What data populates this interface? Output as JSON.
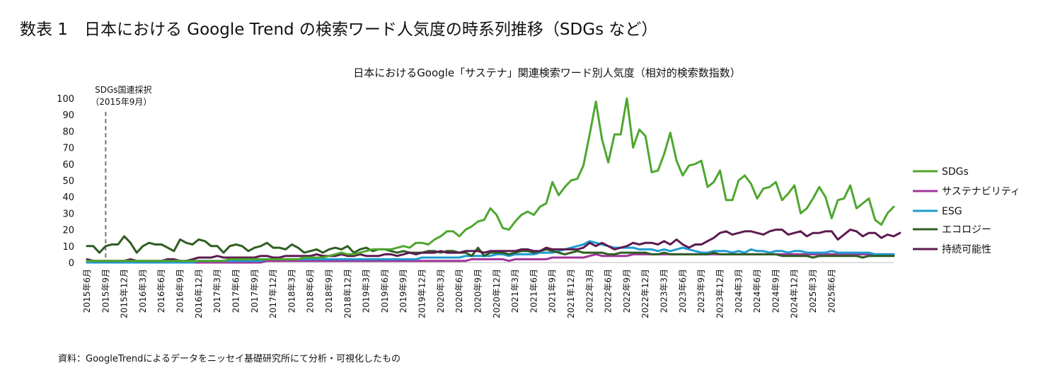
{
  "figure_title": "数表 1　日本における Google Trend の検索ワード人気度の時系列推移（SDGs など）",
  "source_note": "資料：GoogleTrendによるデータをニッセイ基礎研究所にて分析・可視化したもの",
  "chart_data": {
    "type": "line",
    "title": "日本におけるGoogle「サステナ」関連検索ワード別人気度（相対的検索数指数）",
    "xlabel": "",
    "ylabel": "",
    "ylim": [
      0,
      100
    ],
    "yticks": [
      0,
      10,
      20,
      30,
      40,
      50,
      60,
      70,
      80,
      90,
      100
    ],
    "grid": false,
    "legend_position": "right",
    "x_start": "2015-06",
    "x_tick_labels": [
      "2015年6月",
      "2015年9月",
      "2015年12月",
      "2016年3月",
      "2016年6月",
      "2016年9月",
      "2016年12月",
      "2017年3月",
      "2017年6月",
      "2017年9月",
      "2017年12月",
      "2018年3月",
      "2018年6月",
      "2018年9月",
      "2018年12月",
      "2019年3月",
      "2019年6月",
      "2019年9月",
      "2019年12月",
      "2020年3月",
      "2020年6月",
      "2020年9月",
      "2020年12月",
      "2021年3月",
      "2021年6月",
      "2021年9月",
      "2021年12月",
      "2022年3月",
      "2022年6月",
      "2022年9月",
      "2022年12月",
      "2023年3月",
      "2023年6月",
      "2023年9月",
      "2023年12月",
      "2024年3月",
      "2024年6月",
      "2024年9月",
      "2024年12月",
      "2025年3月",
      "2025年6月"
    ],
    "annotation": {
      "label": "SDGs国連採択",
      "sub": "（2015年9月）",
      "at": "2015-09"
    },
    "series": [
      {
        "name": "SDGs",
        "color": "#4ea72e",
        "values": [
          1,
          1,
          1,
          1,
          1,
          1,
          1,
          1,
          1,
          1,
          1,
          1,
          1,
          1,
          1,
          1,
          1,
          1,
          1,
          1,
          1,
          1,
          1,
          2,
          2,
          2,
          2,
          2,
          2,
          2,
          2,
          2,
          2,
          2,
          2,
          3,
          3,
          3,
          3,
          4,
          5,
          6,
          5,
          5,
          6,
          7,
          8,
          8,
          8,
          8,
          9,
          10,
          9,
          12,
          12,
          11,
          14,
          16,
          19,
          19,
          16,
          20,
          22,
          25,
          26,
          33,
          29,
          21,
          20,
          25,
          29,
          31,
          29,
          34,
          36,
          49,
          41,
          46,
          50,
          51,
          59,
          78,
          98,
          75,
          61,
          78,
          78,
          100,
          70,
          81,
          77,
          55,
          56,
          66,
          79,
          62,
          53,
          59,
          60,
          62,
          46,
          49,
          56,
          38,
          38,
          50,
          53,
          48,
          39,
          45,
          46,
          49,
          38,
          42,
          47,
          30,
          33,
          39,
          46,
          40,
          27,
          38,
          39,
          47,
          33,
          36,
          39,
          26,
          23,
          30,
          34
        ]
      },
      {
        "name": "サステナビリティ",
        "color": "#a0359a",
        "values": [
          0,
          0,
          0,
          0,
          0,
          0,
          0,
          0,
          0,
          0,
          0,
          0,
          0,
          0,
          0,
          0,
          0,
          0,
          0,
          0,
          0,
          0,
          0,
          0,
          0,
          0,
          0,
          0,
          0,
          1,
          1,
          1,
          1,
          1,
          1,
          1,
          1,
          1,
          1,
          1,
          1,
          1,
          1,
          1,
          1,
          1,
          1,
          1,
          1,
          1,
          1,
          1,
          1,
          1,
          1,
          1,
          1,
          1,
          1,
          1,
          1,
          1,
          2,
          2,
          2,
          2,
          2,
          2,
          1,
          2,
          2,
          2,
          2,
          2,
          2,
          3,
          3,
          3,
          3,
          3,
          3,
          4,
          5,
          4,
          4,
          4,
          4,
          4,
          5,
          5,
          5,
          5,
          5,
          5,
          5,
          5,
          5,
          5,
          5,
          5,
          5,
          5,
          5,
          5,
          5,
          5,
          5,
          5,
          5,
          5,
          5,
          5,
          5,
          5,
          5,
          5,
          5,
          5,
          5,
          5,
          5,
          5,
          5,
          5,
          5,
          5,
          5,
          5,
          5,
          5,
          5
        ]
      },
      {
        "name": "ESG",
        "color": "#1f9bd1",
        "values": [
          0,
          0,
          0,
          0,
          0,
          0,
          0,
          0,
          0,
          0,
          0,
          0,
          0,
          0,
          0,
          0,
          0,
          0,
          1,
          1,
          1,
          1,
          1,
          1,
          1,
          1,
          1,
          1,
          1,
          2,
          2,
          2,
          2,
          2,
          2,
          2,
          2,
          2,
          2,
          2,
          2,
          2,
          2,
          2,
          2,
          2,
          2,
          2,
          2,
          2,
          2,
          2,
          2,
          2,
          3,
          3,
          3,
          3,
          3,
          3,
          3,
          4,
          4,
          4,
          4,
          4,
          5,
          5,
          4,
          5,
          5,
          5,
          5,
          6,
          6,
          6,
          7,
          8,
          9,
          10,
          11,
          13,
          12,
          11,
          10,
          9,
          9,
          9,
          9,
          8,
          8,
          8,
          7,
          8,
          7,
          8,
          9,
          8,
          7,
          6,
          6,
          7,
          7,
          7,
          6,
          7,
          6,
          8,
          7,
          7,
          6,
          7,
          7,
          6,
          7,
          7,
          6,
          6,
          6,
          6,
          7,
          6,
          6,
          6,
          6,
          6,
          6,
          5,
          5,
          5,
          5
        ]
      },
      {
        "name": "エコロジー",
        "color": "#2f5e22",
        "values": [
          10,
          10,
          6,
          10,
          11,
          11,
          16,
          12,
          6,
          10,
          12,
          11,
          11,
          9,
          7,
          14,
          12,
          11,
          14,
          13,
          10,
          10,
          6,
          10,
          11,
          10,
          7,
          9,
          10,
          12,
          9,
          9,
          8,
          11,
          9,
          6,
          7,
          8,
          6,
          8,
          9,
          8,
          10,
          6,
          8,
          9,
          7,
          8,
          8,
          7,
          6,
          7,
          6,
          6,
          6,
          7,
          7,
          6,
          7,
          7,
          6,
          6,
          4,
          9,
          4,
          6,
          6,
          6,
          5,
          6,
          7,
          7,
          6,
          7,
          8,
          7,
          6,
          5,
          6,
          7,
          6,
          6,
          6,
          6,
          5,
          5,
          6,
          6,
          6,
          6,
          6,
          5,
          5,
          6,
          5,
          5,
          5,
          5,
          5,
          5,
          5,
          6,
          5,
          5,
          5,
          5,
          5,
          5,
          5,
          5,
          5,
          5,
          4,
          4,
          4,
          4,
          4,
          3,
          4,
          4,
          4,
          4,
          4,
          4,
          4,
          3,
          4,
          4,
          4,
          4,
          4
        ]
      },
      {
        "name": "持続可能性",
        "color": "#5c1b4f",
        "values": [
          2,
          1,
          1,
          1,
          1,
          1,
          1,
          2,
          1,
          1,
          1,
          1,
          1,
          2,
          2,
          1,
          1,
          2,
          3,
          3,
          3,
          4,
          3,
          3,
          3,
          3,
          3,
          3,
          4,
          4,
          3,
          3,
          4,
          4,
          4,
          4,
          4,
          5,
          4,
          4,
          4,
          5,
          4,
          4,
          5,
          4,
          4,
          4,
          5,
          5,
          4,
          5,
          6,
          5,
          6,
          6,
          6,
          7,
          6,
          6,
          6,
          7,
          7,
          7,
          6,
          7,
          7,
          7,
          7,
          7,
          8,
          8,
          7,
          7,
          9,
          8,
          8,
          8,
          8,
          8,
          9,
          12,
          10,
          12,
          10,
          8,
          9,
          10,
          12,
          11,
          12,
          12,
          11,
          13,
          11,
          14,
          11,
          9,
          11,
          11,
          13,
          15,
          18,
          19,
          17,
          18,
          19,
          19,
          18,
          17,
          19,
          20,
          20,
          17,
          18,
          19,
          16,
          18,
          18,
          19,
          19,
          14,
          17,
          20,
          19,
          16,
          18,
          18,
          15,
          17,
          16,
          18
        ]
      }
    ]
  }
}
